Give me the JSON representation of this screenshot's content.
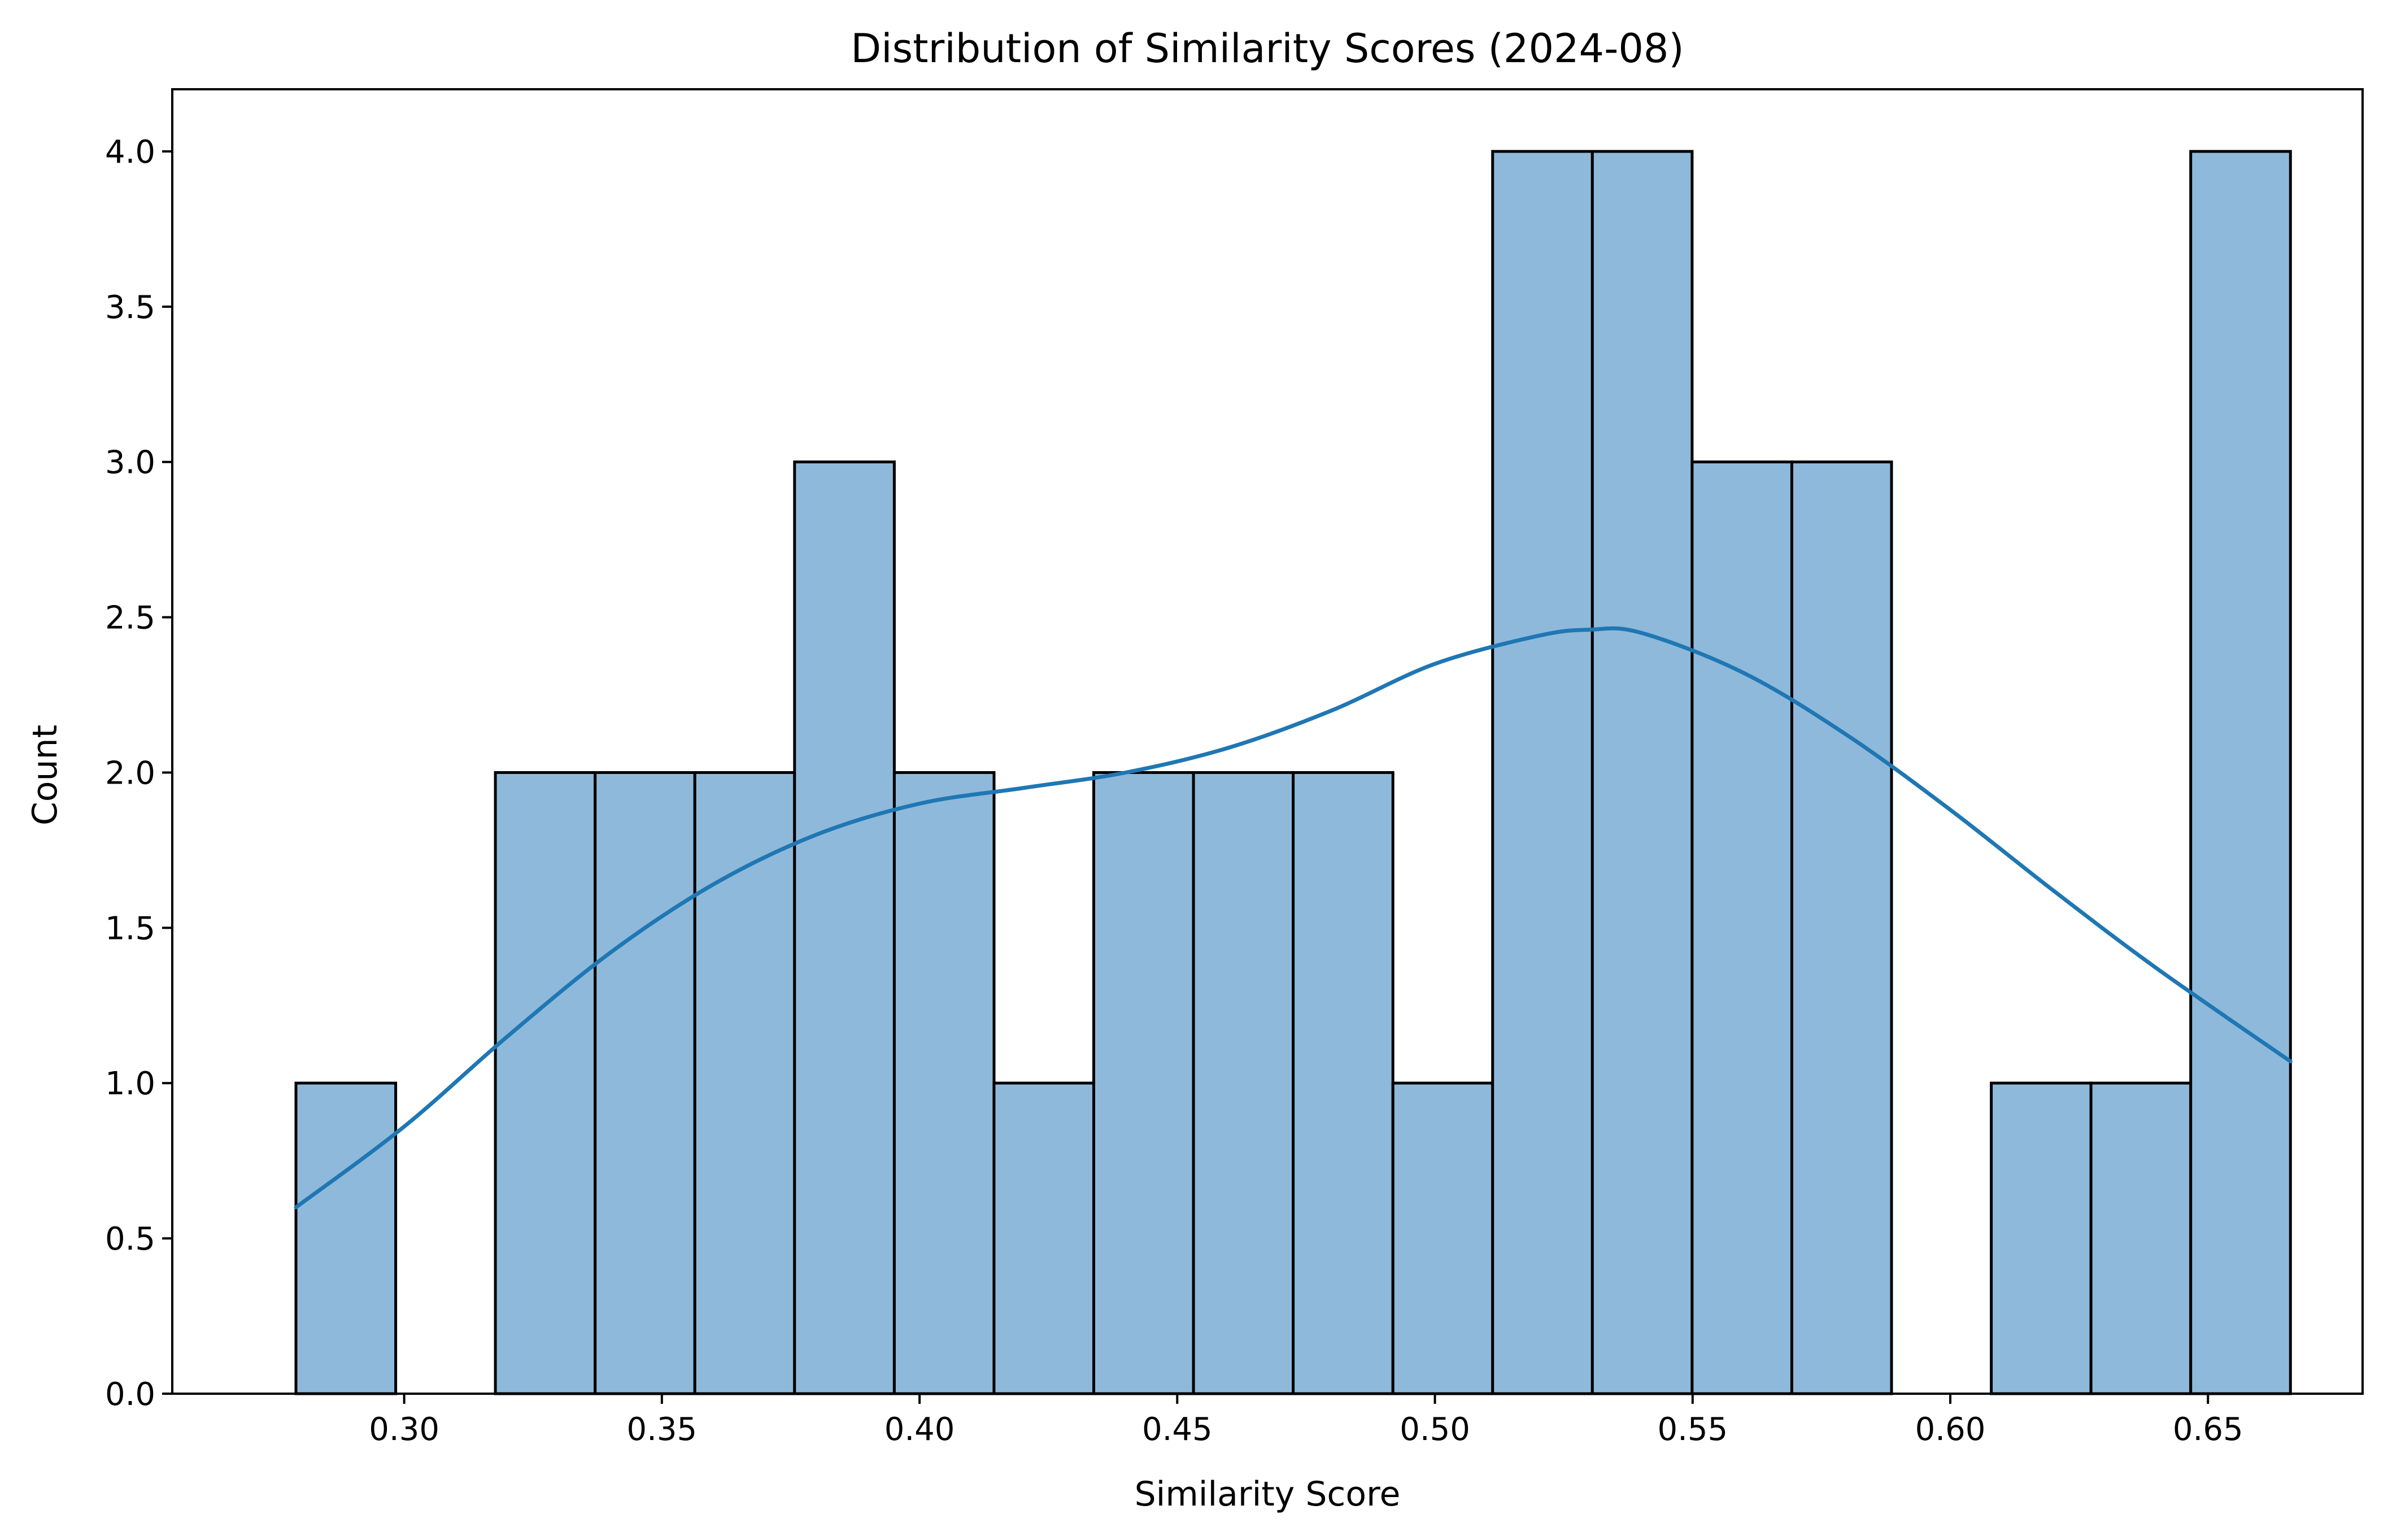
{
  "chart_data": {
    "type": "bar",
    "subtype": "histogram-with-kde",
    "title": "Distribution of Similarity Scores (2024-08)",
    "xlabel": "Similarity Score",
    "ylabel": "Count",
    "xlim": [
      0.255,
      0.68
    ],
    "ylim": [
      0,
      4.2
    ],
    "xticks": [
      0.3,
      0.35,
      0.4,
      0.45,
      0.5,
      0.55,
      0.6,
      0.65
    ],
    "xtick_labels": [
      "0.30",
      "0.35",
      "0.40",
      "0.45",
      "0.50",
      "0.55",
      "0.60",
      "0.65"
    ],
    "yticks": [
      0.0,
      0.5,
      1.0,
      1.5,
      2.0,
      2.5,
      3.0,
      3.5,
      4.0
    ],
    "ytick_labels": [
      "0.0",
      "0.5",
      "1.0",
      "1.5",
      "2.0",
      "2.5",
      "3.0",
      "3.5",
      "4.0"
    ],
    "bins": {
      "start": 0.279,
      "width": 0.01935,
      "counts": [
        1,
        0,
        2,
        2,
        2,
        3,
        2,
        1,
        2,
        2,
        2,
        1,
        4,
        4,
        3,
        3,
        0,
        1,
        1,
        4
      ]
    },
    "kde": {
      "x": [
        0.279,
        0.3,
        0.32,
        0.34,
        0.36,
        0.38,
        0.4,
        0.42,
        0.44,
        0.46,
        0.48,
        0.5,
        0.52,
        0.53,
        0.54,
        0.56,
        0.58,
        0.6,
        0.62,
        0.64,
        0.666
      ],
      "y": [
        0.6,
        0.86,
        1.15,
        1.42,
        1.64,
        1.8,
        1.9,
        1.95,
        2.0,
        2.08,
        2.2,
        2.35,
        2.44,
        2.46,
        2.45,
        2.32,
        2.12,
        1.88,
        1.62,
        1.37,
        1.07
      ]
    },
    "grid": false,
    "colors": {
      "bar_fill": "#8fb9da",
      "bar_edge": "#000000",
      "kde_line": "#1f77b4"
    }
  }
}
